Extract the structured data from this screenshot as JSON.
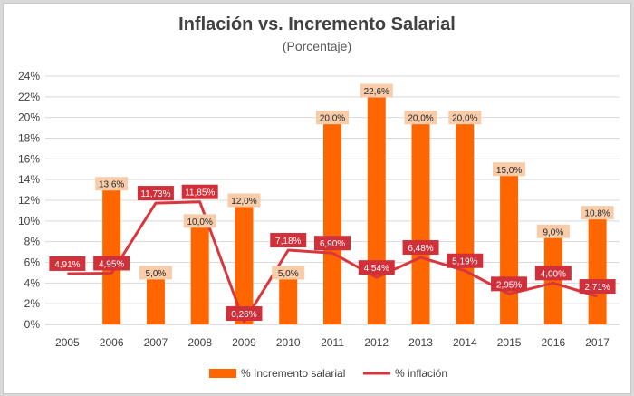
{
  "chart_data": {
    "type": "bar+line",
    "title": "Inflación vs. Incremento Salarial",
    "subtitle": "(Porcentaje)",
    "categories": [
      "2005",
      "2006",
      "2007",
      "2008",
      "2009",
      "2010",
      "2011",
      "2012",
      "2013",
      "2014",
      "2015",
      "2016",
      "2017"
    ],
    "ylim": [
      0,
      24
    ],
    "yticks": [
      0,
      2,
      4,
      6,
      8,
      10,
      12,
      14,
      16,
      18,
      20,
      22,
      24
    ],
    "ytick_labels": [
      "0%",
      "2%",
      "4%",
      "6%",
      "8%",
      "10%",
      "12%",
      "14%",
      "16%",
      "18%",
      "20%",
      "22%",
      "24%"
    ],
    "grid": true,
    "legend_position": "bottom",
    "series": [
      {
        "name": "% Incremento salarial",
        "type": "bar",
        "color": "#ff6600",
        "label_bg": "#f8cba9",
        "values": [
          null,
          13.6,
          5.0,
          10.0,
          12.0,
          5.0,
          20.0,
          22.6,
          20.0,
          20.0,
          15.0,
          9.0,
          10.8
        ],
        "labels": [
          null,
          "13,6%",
          "5,0%",
          "10,0%",
          "12,0%",
          "5,0%",
          "20,0%",
          "22,6%",
          "20,0%",
          "20,0%",
          "15,0%",
          "9,0%",
          "10,8%"
        ]
      },
      {
        "name": "% inflación",
        "type": "line",
        "color": "#d9363e",
        "label_bg": "#d0303a",
        "values": [
          4.91,
          4.95,
          11.73,
          11.85,
          0.26,
          7.18,
          6.9,
          4.54,
          6.48,
          5.19,
          2.95,
          4.0,
          2.71
        ],
        "labels": [
          "4,91%",
          "4,95%",
          "11,73%",
          "11,85%",
          "0,26%",
          "7,18%",
          "6,90%",
          "4,54%",
          "6,48%",
          "5,19%",
          "2,95%",
          "4,00%",
          "2,71%"
        ]
      }
    ]
  }
}
